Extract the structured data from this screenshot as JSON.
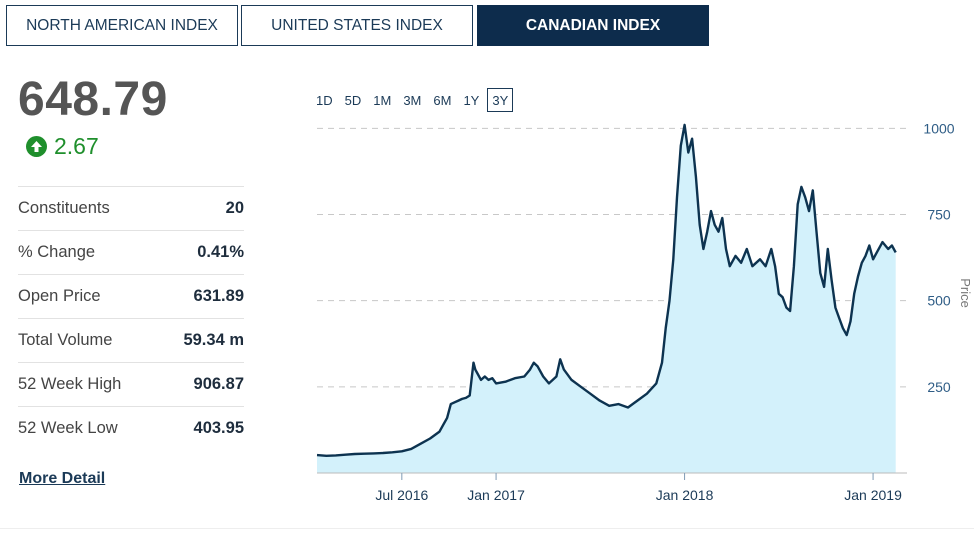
{
  "tabs": [
    {
      "label": "NORTH AMERICAN INDEX",
      "active": false
    },
    {
      "label": "UNITED STATES INDEX",
      "active": false
    },
    {
      "label": "CANADIAN INDEX",
      "active": true
    }
  ],
  "quote": {
    "price": "648.79",
    "change": "2.67",
    "direction_icon": "arrow-up-icon",
    "change_color": "#1f8f2c"
  },
  "stats": [
    {
      "label": "Constituents",
      "value": "20"
    },
    {
      "label": "% Change",
      "value": "0.41%"
    },
    {
      "label": "Open Price",
      "value": "631.89"
    },
    {
      "label": "Total Volume",
      "value": "59.34 m"
    },
    {
      "label": "52 Week High",
      "value": "906.87"
    },
    {
      "label": "52 Week Low",
      "value": "403.95"
    }
  ],
  "more_detail": "More Detail",
  "ranges": [
    "1D",
    "5D",
    "1M",
    "3M",
    "6M",
    "1Y",
    "3Y"
  ],
  "selected_range": "3Y",
  "chart_data": {
    "type": "area",
    "ylabel": "Price",
    "y_ticks": [
      250,
      500,
      750,
      1000
    ],
    "ylim": [
      0,
      1030
    ],
    "x_ticks": [
      {
        "label": "Jul 2016",
        "t": 2016.5
      },
      {
        "label": "Jan 2017",
        "t": 2017.0
      },
      {
        "label": "Jan 2018",
        "t": 2018.0
      },
      {
        "label": "Jan 2019",
        "t": 2019.0
      }
    ],
    "xlim": [
      2016.05,
      2019.18
    ],
    "grid": "horizontal-dashed",
    "line_color": "#0d3350",
    "fill_color": "#d3f1fb",
    "series": [
      {
        "points": [
          [
            2016.05,
            52
          ],
          [
            2016.1,
            50
          ],
          [
            2016.15,
            51
          ],
          [
            2016.2,
            53
          ],
          [
            2016.25,
            55
          ],
          [
            2016.3,
            56
          ],
          [
            2016.35,
            57
          ],
          [
            2016.4,
            58
          ],
          [
            2016.45,
            60
          ],
          [
            2016.5,
            63
          ],
          [
            2016.55,
            70
          ],
          [
            2016.6,
            85
          ],
          [
            2016.65,
            100
          ],
          [
            2016.7,
            120
          ],
          [
            2016.72,
            140
          ],
          [
            2016.74,
            160
          ],
          [
            2016.76,
            200
          ],
          [
            2016.78,
            205
          ],
          [
            2016.8,
            210
          ],
          [
            2016.82,
            215
          ],
          [
            2016.84,
            218
          ],
          [
            2016.86,
            225
          ],
          [
            2016.88,
            320
          ],
          [
            2016.89,
            300
          ],
          [
            2016.9,
            290
          ],
          [
            2016.92,
            270
          ],
          [
            2016.94,
            280
          ],
          [
            2016.96,
            270
          ],
          [
            2016.98,
            275
          ],
          [
            2017.0,
            260
          ],
          [
            2017.05,
            265
          ],
          [
            2017.1,
            275
          ],
          [
            2017.15,
            280
          ],
          [
            2017.18,
            300
          ],
          [
            2017.2,
            320
          ],
          [
            2017.22,
            310
          ],
          [
            2017.25,
            280
          ],
          [
            2017.28,
            260
          ],
          [
            2017.32,
            280
          ],
          [
            2017.34,
            330
          ],
          [
            2017.36,
            300
          ],
          [
            2017.4,
            270
          ],
          [
            2017.45,
            250
          ],
          [
            2017.5,
            230
          ],
          [
            2017.55,
            210
          ],
          [
            2017.6,
            195
          ],
          [
            2017.65,
            200
          ],
          [
            2017.7,
            190
          ],
          [
            2017.75,
            210
          ],
          [
            2017.8,
            230
          ],
          [
            2017.85,
            260
          ],
          [
            2017.88,
            320
          ],
          [
            2017.9,
            420
          ],
          [
            2017.92,
            500
          ],
          [
            2017.94,
            620
          ],
          [
            2017.96,
            800
          ],
          [
            2017.98,
            950
          ],
          [
            2018.0,
            1010
          ],
          [
            2018.02,
            930
          ],
          [
            2018.04,
            970
          ],
          [
            2018.06,
            860
          ],
          [
            2018.08,
            720
          ],
          [
            2018.1,
            650
          ],
          [
            2018.12,
            700
          ],
          [
            2018.14,
            760
          ],
          [
            2018.16,
            720
          ],
          [
            2018.18,
            700
          ],
          [
            2018.2,
            740
          ],
          [
            2018.22,
            650
          ],
          [
            2018.24,
            600
          ],
          [
            2018.27,
            630
          ],
          [
            2018.3,
            610
          ],
          [
            2018.33,
            650
          ],
          [
            2018.36,
            600
          ],
          [
            2018.4,
            620
          ],
          [
            2018.43,
            600
          ],
          [
            2018.46,
            650
          ],
          [
            2018.48,
            600
          ],
          [
            2018.5,
            520
          ],
          [
            2018.52,
            510
          ],
          [
            2018.54,
            480
          ],
          [
            2018.56,
            470
          ],
          [
            2018.58,
            600
          ],
          [
            2018.6,
            780
          ],
          [
            2018.62,
            830
          ],
          [
            2018.64,
            800
          ],
          [
            2018.66,
            760
          ],
          [
            2018.68,
            820
          ],
          [
            2018.7,
            700
          ],
          [
            2018.72,
            580
          ],
          [
            2018.74,
            540
          ],
          [
            2018.76,
            650
          ],
          [
            2018.78,
            560
          ],
          [
            2018.8,
            480
          ],
          [
            2018.82,
            450
          ],
          [
            2018.84,
            420
          ],
          [
            2018.86,
            400
          ],
          [
            2018.88,
            440
          ],
          [
            2018.9,
            520
          ],
          [
            2018.92,
            570
          ],
          [
            2018.94,
            610
          ],
          [
            2018.96,
            630
          ],
          [
            2018.98,
            660
          ],
          [
            2019.0,
            620
          ],
          [
            2019.02,
            640
          ],
          [
            2019.05,
            670
          ],
          [
            2019.08,
            650
          ],
          [
            2019.1,
            660
          ],
          [
            2019.12,
            640
          ]
        ]
      }
    ]
  }
}
